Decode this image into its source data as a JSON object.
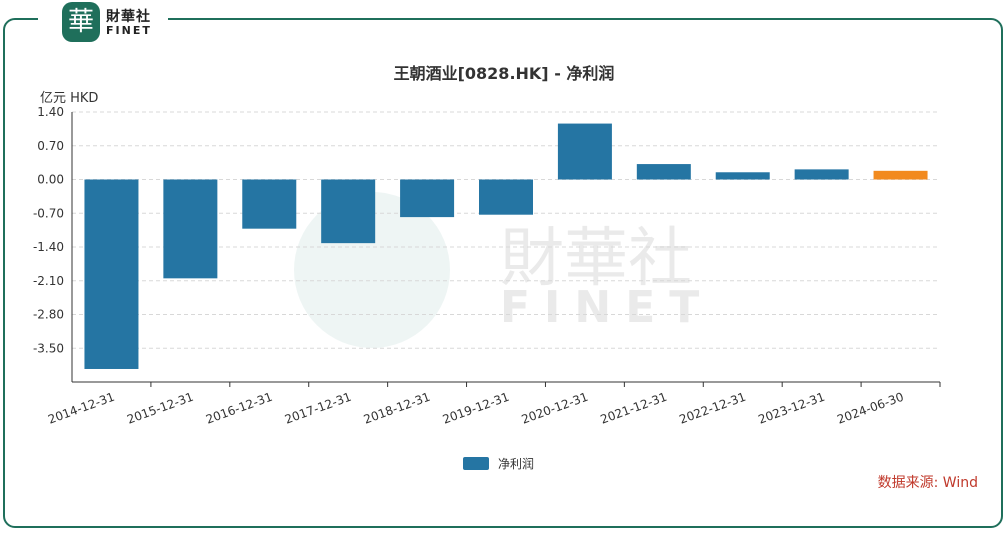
{
  "brand": {
    "name_cn": "財華社",
    "name_en": "FINET",
    "badge_char": "華"
  },
  "unit_label": "亿元  HKD",
  "source": "数据来源: Wind",
  "colors": {
    "bar": "#2575a3",
    "highlight": "#f28a1e",
    "frame": "#1f6f5b"
  },
  "chart_data": {
    "type": "bar",
    "title": "王朝酒业[0828.HK] - 净利润",
    "categories": [
      "2014-12-31",
      "2015-12-31",
      "2016-12-31",
      "2017-12-31",
      "2018-12-31",
      "2019-12-31",
      "2020-12-31",
      "2021-12-31",
      "2022-12-31",
      "2023-12-31",
      "2024-06-30"
    ],
    "series": [
      {
        "name": "净利润",
        "values": [
          -3.93,
          -2.05,
          -1.02,
          -1.32,
          -0.78,
          -0.73,
          1.16,
          0.32,
          0.15,
          0.21,
          0.18
        ]
      }
    ],
    "highlight_index": 10,
    "yticks": [
      "1.40",
      "0.70",
      "0.00",
      "-0.70",
      "-1.40",
      "-2.10",
      "-2.80",
      "-3.50"
    ],
    "ylim": [
      -4.2,
      1.4
    ],
    "grid": true,
    "legend_position": "bottom-center"
  }
}
